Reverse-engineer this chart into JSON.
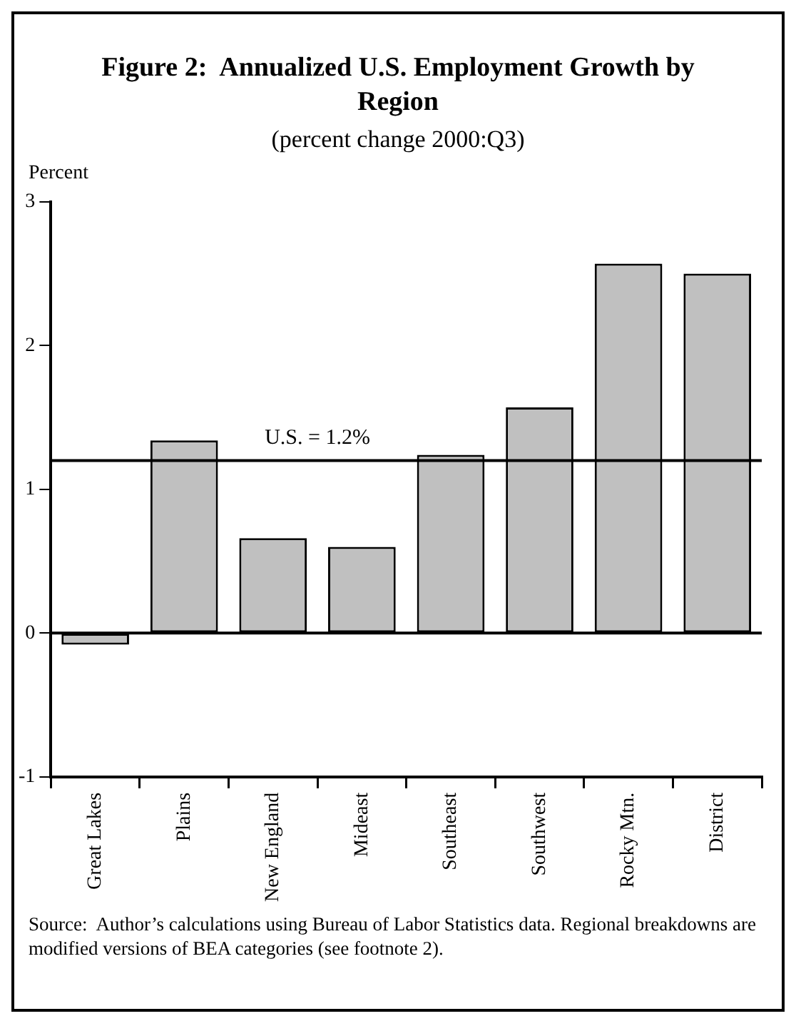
{
  "chart_data": {
    "type": "bar",
    "title": "Figure 2:  Annualized U.S. Employment Growth by Region",
    "subtitle": "(percent change 2000:Q3)",
    "ylabel": "Percent",
    "categories": [
      "Great Lakes",
      "Plains",
      "New England",
      "Mideast",
      "Southeast",
      "Southwest",
      "Rocky Mtn.",
      "District"
    ],
    "values": [
      -0.08,
      1.34,
      0.66,
      0.6,
      1.24,
      1.57,
      2.57,
      2.5
    ],
    "color": "#c0c0c0",
    "ylim": [
      -1,
      3
    ],
    "yticks": [
      -1,
      0,
      1,
      2,
      3
    ],
    "grid": false,
    "legend": false,
    "ref_lines": [
      {
        "axis": "y",
        "value": 0,
        "color": "#000000"
      },
      {
        "axis": "y",
        "value": 1.2,
        "label": "U.S. = 1.2%",
        "color": "#000000"
      }
    ],
    "annotations": [
      "Source:  Author’s calculations using Bureau of Labor Statistics data. Regional breakdowns are modified versions of BEA categories (see footnote 2)."
    ]
  }
}
